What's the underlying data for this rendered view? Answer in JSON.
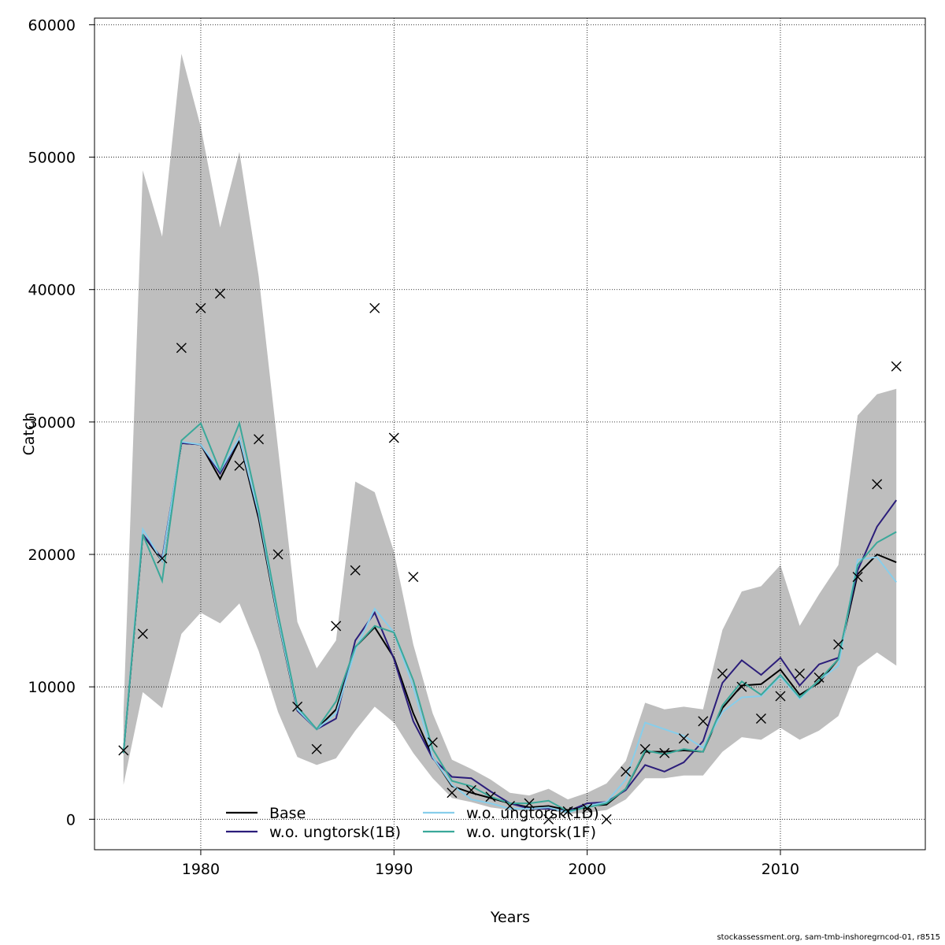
{
  "footer_text": "stockassessment.org, sam-tmb-inshoregrncod-01, r8515",
  "chart_data": {
    "type": "line",
    "xlabel": "Years",
    "ylabel": "Catch",
    "xlim": [
      1974.5,
      2017.5
    ],
    "ylim": [
      -2300,
      60500
    ],
    "x_ticks": [
      1980,
      1990,
      2000,
      2010
    ],
    "y_ticks": [
      0,
      10000,
      20000,
      30000,
      40000,
      50000,
      60000
    ],
    "grid": true,
    "legend_position": "bottom-center",
    "x": [
      1976,
      1977,
      1978,
      1979,
      1980,
      1981,
      1982,
      1983,
      1984,
      1985,
      1986,
      1987,
      1988,
      1989,
      1990,
      1991,
      1992,
      1993,
      1994,
      1995,
      1996,
      1997,
      1998,
      1999,
      2000,
      2001,
      2002,
      2003,
      2004,
      2005,
      2006,
      2007,
      2008,
      2009,
      2010,
      2011,
      2012,
      2013,
      2014,
      2015,
      2016
    ],
    "band": {
      "color": "#bebebe",
      "upper": [
        8000,
        49000,
        44000,
        57800,
        52300,
        44700,
        50400,
        41000,
        28000,
        14900,
        11400,
        13500,
        25500,
        24700,
        20200,
        13200,
        8000,
        4500,
        3800,
        3000,
        2000,
        1800,
        2300,
        1500,
        2000,
        2700,
        4400,
        8800,
        8300,
        8500,
        8300,
        14300,
        17200,
        17600,
        19200,
        14600,
        17000,
        19200,
        30500,
        32100,
        32500
      ],
      "lower": [
        2600,
        9600,
        8400,
        14000,
        15600,
        14800,
        16300,
        12700,
        8100,
        4700,
        4100,
        4600,
        6700,
        8500,
        7300,
        5000,
        3100,
        1600,
        1300,
        900,
        700,
        600,
        700,
        400,
        500,
        700,
        1500,
        3100,
        3100,
        3300,
        3300,
        5100,
        6200,
        6000,
        6900,
        6000,
        6700,
        7800,
        11500,
        12600,
        11600
      ]
    },
    "series": [
      {
        "name": "Base",
        "color": "#000000",
        "values": [
          5000,
          21500,
          19500,
          28400,
          28300,
          25700,
          28600,
          22700,
          15000,
          8200,
          6800,
          8300,
          13000,
          14500,
          12200,
          8000,
          4700,
          2500,
          2000,
          1600,
          1200,
          900,
          1000,
          700,
          1000,
          1100,
          2300,
          5100,
          5100,
          5200,
          5100,
          8400,
          10100,
          10200,
          11300,
          9400,
          10300,
          12100,
          18500,
          20000,
          19400
        ]
      },
      {
        "name": "w.o. ungtorsk(1B)",
        "color": "#2b1d7a",
        "values": [
          5000,
          21500,
          19700,
          28400,
          28300,
          26100,
          28800,
          23000,
          15300,
          8200,
          6800,
          7600,
          13500,
          15600,
          12100,
          7400,
          4600,
          3200,
          3100,
          2100,
          1200,
          800,
          800,
          600,
          1200,
          1300,
          2200,
          4100,
          3600,
          4300,
          5900,
          10300,
          12000,
          10900,
          12200,
          10100,
          11700,
          12200,
          18800,
          22100,
          24100
        ]
      },
      {
        "name": "w.o. ungtorsk(1D)",
        "color": "#87ceeb",
        "values": [
          5000,
          21900,
          19500,
          28500,
          28300,
          26300,
          28800,
          23100,
          15100,
          8300,
          6800,
          8000,
          12800,
          15900,
          14100,
          10000,
          4700,
          2600,
          1500,
          1200,
          800,
          800,
          900,
          500,
          1000,
          1300,
          3000,
          7300,
          6800,
          6300,
          5400,
          8100,
          9200,
          9300,
          10800,
          9100,
          10500,
          11600,
          19600,
          19800,
          17900
        ]
      },
      {
        "name": "w.o. ungtorsk(1F)",
        "color": "#3aa89a",
        "values": [
          5000,
          21500,
          18000,
          28600,
          29900,
          26300,
          29900,
          23400,
          15500,
          8500,
          6800,
          8900,
          13000,
          14600,
          14100,
          10500,
          5300,
          2900,
          2500,
          1700,
          1200,
          1200,
          1400,
          600,
          900,
          1200,
          2300,
          5200,
          4900,
          5300,
          5100,
          8600,
          10400,
          9400,
          10900,
          9200,
          10500,
          12100,
          19200,
          20900,
          21700
        ]
      }
    ],
    "observations": {
      "marker": "x",
      "x": [
        1976,
        1977,
        1978,
        1979,
        1980,
        1981,
        1982,
        1983,
        1984,
        1985,
        1986,
        1987,
        1988,
        1989,
        1990,
        1991,
        1992,
        1993,
        1994,
        1995,
        1996,
        1997,
        1998,
        1999,
        2000,
        2001,
        2002,
        2003,
        2004,
        2005,
        2006,
        2007,
        2008,
        2009,
        2010,
        2011,
        2012,
        2013,
        2014,
        2015,
        2016
      ],
      "y": [
        5200,
        14000,
        19700,
        35600,
        38600,
        39700,
        26700,
        28700,
        20000,
        8500,
        5300,
        14600,
        18800,
        38600,
        28800,
        18300,
        5800,
        2000,
        2200,
        1700,
        1000,
        1200,
        0,
        600,
        800,
        0,
        3600,
        5300,
        5000,
        6100,
        7400,
        11000,
        10000,
        7600,
        9300,
        11000,
        10700,
        13200,
        18300,
        25300,
        34200
      ]
    }
  }
}
